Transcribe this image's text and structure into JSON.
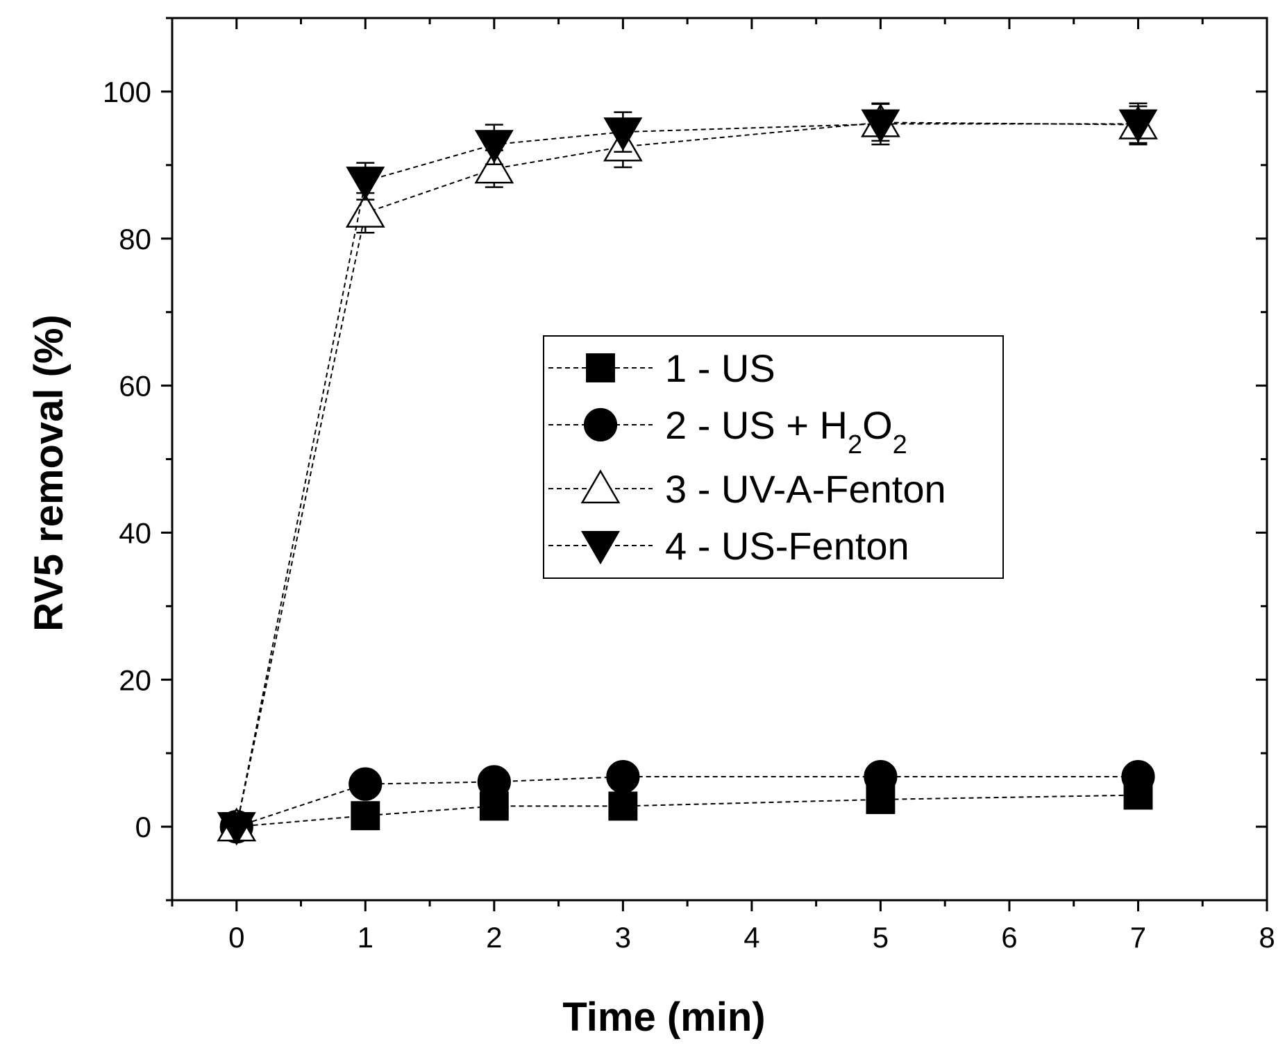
{
  "chart_data": {
    "type": "scatter",
    "xlabel": "Time (min)",
    "ylabel": "RV5 removal (%)",
    "xlim": [
      -0.5,
      8
    ],
    "ylim": [
      -10,
      110
    ],
    "x_ticks": [
      "0",
      "1",
      "2",
      "3",
      "4",
      "5",
      "6",
      "7",
      "8"
    ],
    "y_ticks": [
      "0",
      "20",
      "40",
      "60",
      "80",
      "100"
    ],
    "grid": false,
    "legend_position": "center-right",
    "line_style": "dashed",
    "series": [
      {
        "name": "1 - US",
        "marker": "square-filled",
        "x": [
          0,
          1,
          2,
          3,
          5,
          7
        ],
        "y": [
          0,
          1.5,
          2.8,
          2.8,
          3.7,
          4.3
        ]
      },
      {
        "name": "2 - US + H2O2",
        "name_parts": [
          "2 - US + H",
          "2",
          "O",
          "2"
        ],
        "marker": "circle-filled",
        "x": [
          0,
          1,
          2,
          3,
          5,
          7
        ],
        "y": [
          0,
          5.8,
          6.1,
          6.8,
          6.8,
          6.8
        ]
      },
      {
        "name": "3 - UV-A-Fenton",
        "marker": "triangle-up-open",
        "x": [
          0,
          1,
          2,
          3,
          5,
          7
        ],
        "y": [
          0,
          83.5,
          89.5,
          92.5,
          95.8,
          95.5
        ],
        "err": [
          0,
          2.7,
          2.5,
          2.8,
          2.5,
          2.5
        ]
      },
      {
        "name": "4 - US-Fenton",
        "marker": "triangle-down-filled",
        "x": [
          0,
          1,
          2,
          3,
          5,
          7
        ],
        "y": [
          0,
          87.8,
          92.8,
          94.5,
          95.6,
          95.6
        ],
        "err": [
          0,
          2.5,
          2.7,
          2.7,
          2.8,
          2.8
        ]
      }
    ]
  }
}
